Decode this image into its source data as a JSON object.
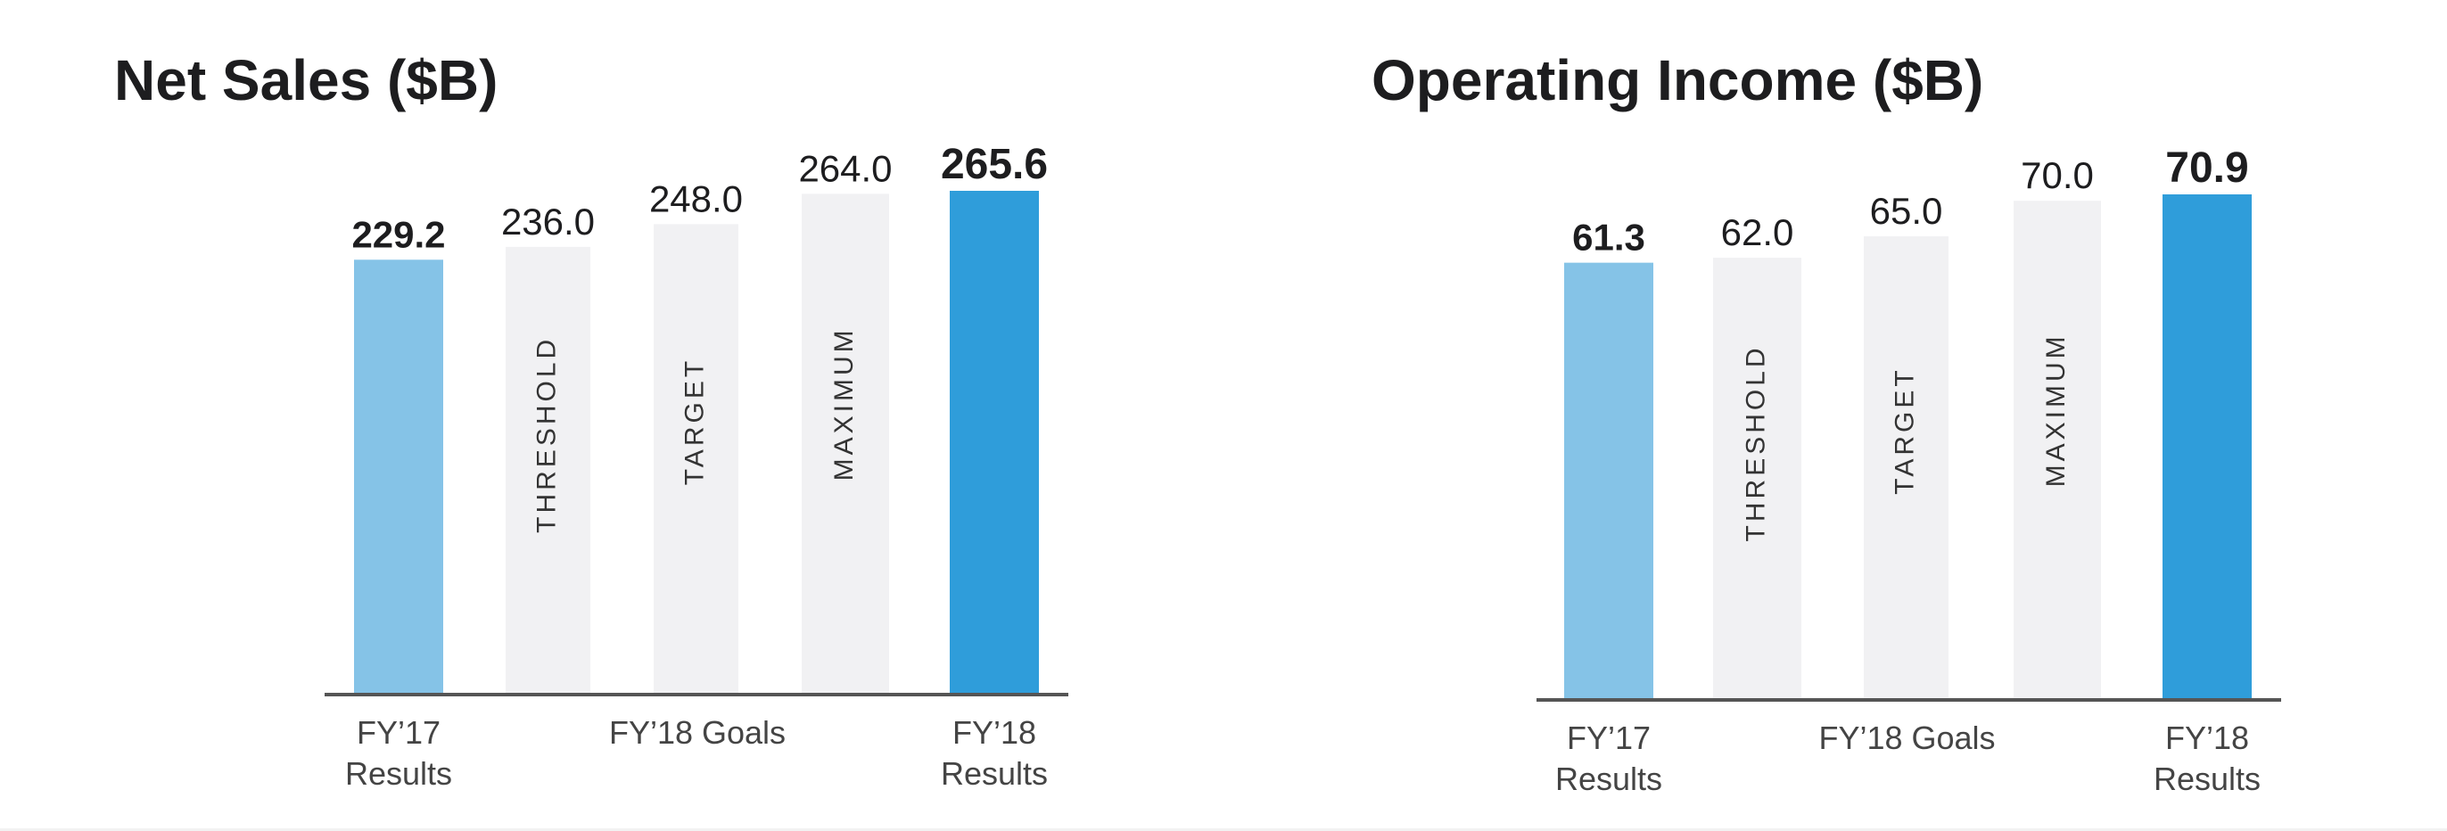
{
  "colors": {
    "prior_results": "#85C3E7",
    "goal_bars": "#F1F1F3",
    "current_results": "#2F9DDA",
    "text": "#1d1d1f",
    "axis_line": "#555555",
    "category_text": "#444444"
  },
  "chart_data": [
    {
      "type": "bar",
      "title": "Net Sales ($B)",
      "ylim": [
        0,
        265.6
      ],
      "bars": [
        {
          "name": "fy17-results",
          "value": 229.2,
          "label": "229.2",
          "role": "prior_results",
          "bold": true,
          "inner_label": ""
        },
        {
          "name": "threshold",
          "value": 236.0,
          "label": "236.0",
          "role": "goal",
          "bold": false,
          "inner_label": "THRESHOLD"
        },
        {
          "name": "target",
          "value": 248.0,
          "label": "248.0",
          "role": "goal",
          "bold": false,
          "inner_label": "TARGET"
        },
        {
          "name": "maximum",
          "value": 264.0,
          "label": "264.0",
          "role": "goal",
          "bold": false,
          "inner_label": "MAXIMUM"
        },
        {
          "name": "fy18-results",
          "value": 265.6,
          "label": "265.6",
          "role": "current_results",
          "bold": true,
          "inner_label": ""
        }
      ],
      "category_labels": [
        {
          "name": "fy17-results",
          "lines": [
            "FY’17",
            "Results"
          ],
          "bars": [
            0
          ]
        },
        {
          "name": "fy18-goals",
          "lines": [
            "FY’18  Goals"
          ],
          "bars": [
            1,
            2,
            3
          ]
        },
        {
          "name": "fy18-results",
          "lines": [
            "FY’18",
            "Results"
          ],
          "bars": [
            4
          ]
        }
      ]
    },
    {
      "type": "bar",
      "title": "Operating Income ($B)",
      "ylim": [
        0,
        70.9
      ],
      "bars": [
        {
          "name": "fy17-results",
          "value": 61.3,
          "label": "61.3",
          "role": "prior_results",
          "bold": true,
          "inner_label": ""
        },
        {
          "name": "threshold",
          "value": 62.0,
          "label": "62.0",
          "role": "goal",
          "bold": false,
          "inner_label": "THRESHOLD"
        },
        {
          "name": "target",
          "value": 65.0,
          "label": "65.0",
          "role": "goal",
          "bold": false,
          "inner_label": "TARGET"
        },
        {
          "name": "maximum",
          "value": 70.0,
          "label": "70.0",
          "role": "goal",
          "bold": false,
          "inner_label": "MAXIMUM"
        },
        {
          "name": "fy18-results",
          "value": 70.9,
          "label": "70.9",
          "role": "current_results",
          "bold": true,
          "inner_label": ""
        }
      ],
      "category_labels": [
        {
          "name": "fy17-results",
          "lines": [
            "FY’17",
            "Results"
          ],
          "bars": [
            0
          ]
        },
        {
          "name": "fy18-goals",
          "lines": [
            "FY’18  Goals"
          ],
          "bars": [
            1,
            2,
            3
          ]
        },
        {
          "name": "fy18-results",
          "lines": [
            "FY’18",
            "Results"
          ],
          "bars": [
            4
          ]
        }
      ]
    }
  ]
}
